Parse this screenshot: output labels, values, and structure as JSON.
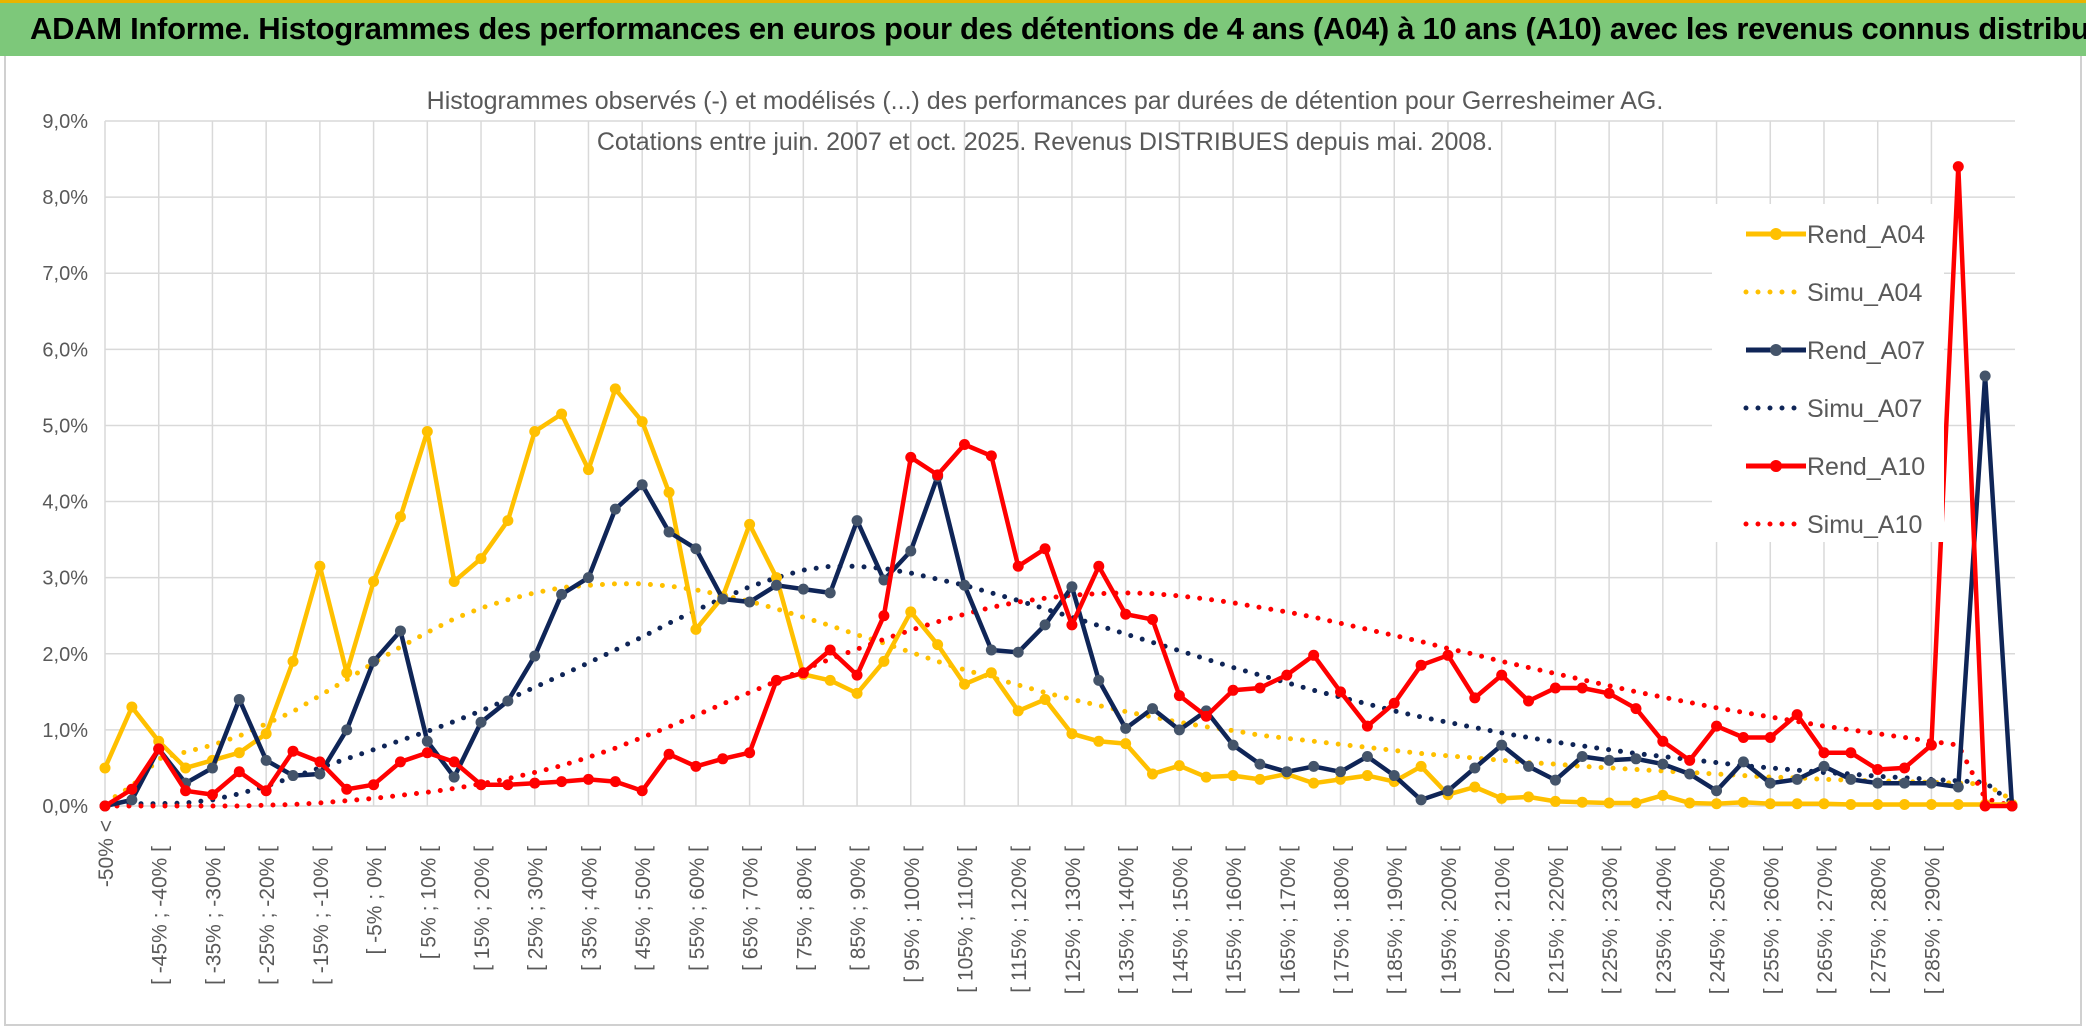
{
  "banner": {
    "title": "ADAM Informe. Histogrammes des performances en euros pour des détentions de 4 ans (A04) à 10 ans (A10) avec les revenus connus distribués",
    "color": "#7dc87a"
  },
  "chart_data": {
    "type": "line",
    "title": "Histogrammes observés (-) et modélisés (...) des performances par durées de détention pour Gerresheimer AG.",
    "subtitle": "Cotations entre juin. 2007 et oct. 2025. Revenus DISTRIBUES depuis mai. 2008.",
    "xlabel": "",
    "ylabel": "",
    "ylim": [
      0,
      9
    ],
    "y_ticks": [
      "0,0%",
      "1,0%",
      "2,0%",
      "3,0%",
      "4,0%",
      "5,0%",
      "6,0%",
      "7,0%",
      "8,0%",
      "9,0%"
    ],
    "grid": true,
    "legend_position": "top-right",
    "x_tick_labels": [
      "-50% <",
      "[ -45% ; -40% [",
      "[ -35% ; -30% [",
      "[ -25% ; -20% [",
      "[ -15% ; -10% [",
      "[ -5% ; 0% [",
      "[ 5% ; 10% [",
      "[ 15% ; 20% [",
      "[ 25% ; 30% [",
      "[ 35% ; 40% [",
      "[ 45% ; 50% [",
      "[ 55% ; 60% [",
      "[ 65% ; 70% [",
      "[ 75% ; 80% [",
      "[ 85% ; 90% [",
      "[ 95% ; 100% [",
      "[ 105% ; 110% [",
      "[ 115% ; 120% [",
      "[ 125% ; 130% [",
      "[ 135% ; 140% [",
      "[ 145% ; 150% [",
      "[ 155% ; 160% [",
      "[ 165% ; 170% [",
      "[ 175% ; 180% [",
      "[ 185% ; 190% [",
      "[ 195% ; 200% [",
      "[ 205% ; 210% [",
      "[ 215% ; 220% [",
      "[ 225% ; 230% [",
      "[ 235% ; 240% [",
      "[ 245% ; 250% [",
      "[ 255% ; 260% [",
      "[ 265% ; 270% [",
      "[ 275% ; 280% [",
      "[ 285% ; 290% ["
    ],
    "n_points": 72,
    "series": [
      {
        "name": "Rend_A04",
        "style": "solid",
        "color": "#ffc000",
        "values": [
          0.5,
          1.3,
          0.85,
          0.5,
          0.6,
          0.7,
          0.95,
          1.9,
          3.15,
          1.75,
          2.95,
          3.8,
          4.92,
          2.95,
          3.25,
          3.75,
          4.92,
          5.15,
          4.42,
          5.48,
          5.05,
          4.12,
          2.32,
          2.75,
          3.7,
          3.0,
          1.73,
          1.65,
          1.48,
          1.9,
          2.55,
          2.12,
          1.6,
          1.75,
          1.25,
          1.4,
          0.95,
          0.85,
          0.82,
          0.42,
          0.53,
          0.38,
          0.4,
          0.35,
          0.42,
          0.3,
          0.35,
          0.4,
          0.32,
          0.52,
          0.15,
          0.25,
          0.1,
          0.12,
          0.06,
          0.05,
          0.04,
          0.04,
          0.14,
          0.04,
          0.03,
          0.05,
          0.03,
          0.03,
          0.03,
          0.02,
          0.02,
          0.02,
          0.02,
          0.02,
          0.02,
          0.02
        ]
      },
      {
        "name": "Simu_A04",
        "style": "dotted",
        "color": "#ffc000",
        "values": [
          0.04,
          0.26,
          0.62,
          0.71,
          0.8,
          0.92,
          1.08,
          1.24,
          1.45,
          1.66,
          1.88,
          2.09,
          2.28,
          2.46,
          2.6,
          2.71,
          2.8,
          2.87,
          2.9,
          2.92,
          2.92,
          2.89,
          2.84,
          2.77,
          2.69,
          2.59,
          2.48,
          2.37,
          2.25,
          2.14,
          2.02,
          1.9,
          1.79,
          1.69,
          1.59,
          1.49,
          1.4,
          1.32,
          1.24,
          1.17,
          1.1,
          1.04,
          0.99,
          0.93,
          0.89,
          0.85,
          0.81,
          0.77,
          0.73,
          0.69,
          0.66,
          0.63,
          0.6,
          0.57,
          0.55,
          0.52,
          0.5,
          0.48,
          0.46,
          0.44,
          0.42,
          0.4,
          0.38,
          0.37,
          0.35,
          0.34,
          0.33,
          0.32,
          0.31,
          0.3,
          0.29,
          0.08
        ]
      },
      {
        "name": "Rend_A07",
        "style": "solid",
        "color": "#0f2557",
        "values": [
          0.0,
          0.08,
          0.75,
          0.3,
          0.5,
          1.4,
          0.6,
          0.4,
          0.42,
          1.0,
          1.9,
          2.3,
          0.85,
          0.38,
          1.1,
          1.38,
          1.97,
          2.78,
          3.0,
          3.9,
          4.22,
          3.6,
          3.38,
          2.72,
          2.68,
          2.9,
          2.85,
          2.8,
          3.75,
          2.97,
          3.35,
          4.33,
          2.9,
          2.05,
          2.02,
          2.38,
          2.88,
          1.65,
          1.02,
          1.28,
          1.0,
          1.25,
          0.8,
          0.55,
          0.45,
          0.52,
          0.45,
          0.65,
          0.4,
          0.08,
          0.2,
          0.5,
          0.8,
          0.52,
          0.34,
          0.65,
          0.6,
          0.62,
          0.55,
          0.42,
          0.2,
          0.58,
          0.3,
          0.35,
          0.52,
          0.35,
          0.3,
          0.3,
          0.3,
          0.25,
          5.65,
          0.0
        ]
      },
      {
        "name": "Simu_A07",
        "style": "dotted",
        "color": "#0f2557",
        "values": [
          0.02,
          0.03,
          0.03,
          0.04,
          0.08,
          0.16,
          0.26,
          0.38,
          0.5,
          0.62,
          0.74,
          0.86,
          0.98,
          1.11,
          1.25,
          1.4,
          1.56,
          1.72,
          1.88,
          2.05,
          2.22,
          2.4,
          2.57,
          2.73,
          2.88,
          3.0,
          3.1,
          3.15,
          3.15,
          3.12,
          3.06,
          2.98,
          2.9,
          2.8,
          2.7,
          2.59,
          2.48,
          2.37,
          2.26,
          2.15,
          2.04,
          1.93,
          1.82,
          1.72,
          1.62,
          1.52,
          1.43,
          1.34,
          1.25,
          1.17,
          1.1,
          1.03,
          0.96,
          0.9,
          0.84,
          0.79,
          0.74,
          0.69,
          0.65,
          0.61,
          0.57,
          0.53,
          0.5,
          0.47,
          0.44,
          0.42,
          0.39,
          0.37,
          0.35,
          0.33,
          0.31,
          0.04
        ]
      },
      {
        "name": "Rend_A10",
        "style": "solid",
        "color": "#ff0000",
        "values": [
          0.0,
          0.22,
          0.75,
          0.2,
          0.15,
          0.45,
          0.2,
          0.72,
          0.58,
          0.22,
          0.28,
          0.58,
          0.7,
          0.58,
          0.28,
          0.28,
          0.3,
          0.32,
          0.35,
          0.32,
          0.2,
          0.68,
          0.52,
          0.62,
          0.7,
          1.65,
          1.75,
          2.05,
          1.72,
          2.5,
          4.58,
          4.35,
          4.75,
          4.6,
          3.15,
          3.38,
          2.38,
          3.15,
          2.52,
          2.45,
          1.45,
          1.18,
          1.52,
          1.55,
          1.72,
          1.98,
          1.5,
          1.05,
          1.35,
          1.85,
          1.98,
          1.42,
          1.72,
          1.38,
          1.55,
          1.55,
          1.48,
          1.28,
          0.85,
          0.6,
          1.05,
          0.9,
          0.9,
          1.2,
          0.7,
          0.7,
          0.48,
          0.5,
          0.8,
          8.4,
          0.0,
          0.0
        ]
      },
      {
        "name": "Simu_A10",
        "style": "dotted",
        "color": "#ff0000",
        "values": [
          0.0,
          0.0,
          0.0,
          0.0,
          0.0,
          0.0,
          0.01,
          0.02,
          0.04,
          0.07,
          0.1,
          0.14,
          0.18,
          0.23,
          0.29,
          0.36,
          0.44,
          0.53,
          0.64,
          0.76,
          0.9,
          1.04,
          1.19,
          1.34,
          1.49,
          1.64,
          1.79,
          1.93,
          2.06,
          2.19,
          2.31,
          2.42,
          2.52,
          2.61,
          2.68,
          2.73,
          2.77,
          2.79,
          2.8,
          2.79,
          2.76,
          2.72,
          2.67,
          2.61,
          2.55,
          2.48,
          2.4,
          2.32,
          2.24,
          2.16,
          2.07,
          1.99,
          1.9,
          1.82,
          1.74,
          1.66,
          1.58,
          1.5,
          1.43,
          1.36,
          1.29,
          1.23,
          1.17,
          1.11,
          1.05,
          1.0,
          0.95,
          0.9,
          0.85,
          0.8,
          0.1,
          0.0
        ]
      }
    ]
  }
}
